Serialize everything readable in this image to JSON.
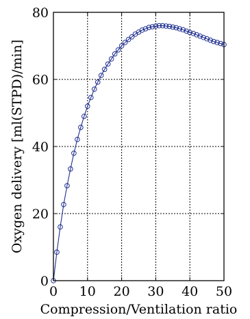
{
  "chart_data": {
    "type": "line",
    "title": "",
    "xlabel": "Compression/Ventilation ratio",
    "ylabel": "Oxygen delivery [ml(STPD)/min]",
    "xlim": [
      0,
      50
    ],
    "ylim": [
      0,
      80
    ],
    "xticks": [
      "0",
      "10",
      "20",
      "30",
      "40",
      "50"
    ],
    "yticks": [
      "0",
      "20",
      "40",
      "60",
      "80"
    ],
    "grid": true,
    "grid_style": "dotted",
    "marker": "circle",
    "line_color": "#1f2f8f",
    "series": [
      {
        "name": "",
        "x": [
          0,
          1,
          2,
          3,
          4,
          5,
          6,
          7,
          8,
          9,
          10,
          11,
          12,
          13,
          14,
          15,
          16,
          17,
          18,
          19,
          20,
          21,
          22,
          23,
          24,
          25,
          26,
          27,
          28,
          29,
          30,
          31,
          32,
          33,
          34,
          35,
          36,
          37,
          38,
          39,
          40,
          41,
          42,
          43,
          44,
          45,
          46,
          47,
          48,
          49,
          50
        ],
        "y": [
          0,
          8.5,
          16,
          22.7,
          28.3,
          33.3,
          38,
          42.1,
          45.7,
          49,
          52,
          54.6,
          57.1,
          59.2,
          61.2,
          63,
          64.6,
          66.1,
          67.6,
          68.8,
          70,
          71,
          71.9,
          72.7,
          73.5,
          74.1,
          74.7,
          75.1,
          75.5,
          75.7,
          75.9,
          76,
          76,
          75.9,
          75.8,
          75.6,
          75.4,
          75.1,
          74.8,
          74.4,
          74,
          73.7,
          73.3,
          72.9,
          72.5,
          72.1,
          71.7,
          71.3,
          71,
          70.7,
          70.4
        ]
      }
    ]
  }
}
